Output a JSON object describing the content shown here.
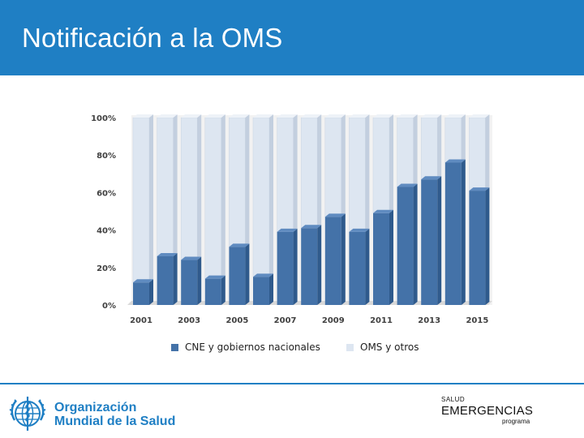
{
  "header": {
    "title": "Notificación a la OMS"
  },
  "chart_data": {
    "type": "bar",
    "stacked": true,
    "percent": true,
    "title": "",
    "xlabel": "",
    "ylabel": "",
    "ylim": [
      0,
      100
    ],
    "y_ticks": [
      "0%",
      "20%",
      "40%",
      "60%",
      "80%",
      "100%"
    ],
    "categories": [
      "2001",
      "2002",
      "2003",
      "2004",
      "2005",
      "2006",
      "2007",
      "2008",
      "2009",
      "2010",
      "2011",
      "2012",
      "2013",
      "2014",
      "2015"
    ],
    "x_tick_labels": [
      "2001",
      "",
      "2003",
      "",
      "2005",
      "",
      "2007",
      "",
      "2009",
      "",
      "2011",
      "",
      "2013",
      "",
      "2015"
    ],
    "series": [
      {
        "name": "CNE y gobiernos nacionales",
        "color": "#4472a8",
        "values": [
          12,
          26,
          24,
          14,
          31,
          15,
          39,
          41,
          47,
          39,
          49,
          63,
          67,
          76,
          61
        ]
      },
      {
        "name": "OMS y otros",
        "color": "#dde6f1",
        "values": [
          88,
          74,
          76,
          86,
          69,
          85,
          61,
          59,
          53,
          61,
          51,
          37,
          33,
          24,
          39
        ]
      }
    ],
    "grid": false,
    "legend": "bottom"
  },
  "footer": {
    "org_line1": "Organización",
    "org_line2": "Mundial de la Salud",
    "program_small": "SALUD",
    "program_big": "EMERGENCIAS",
    "program_tiny": "programa"
  },
  "colors": {
    "header": "#1f7fc4",
    "brand": "#1f7fc4"
  }
}
